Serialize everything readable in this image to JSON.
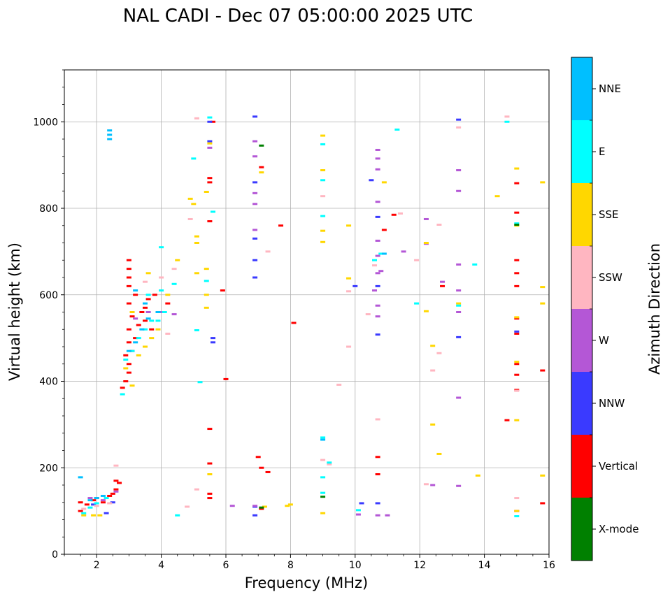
{
  "chart_data": {
    "type": "scatter",
    "title": "NAL CADI - Dec 07 05:00:00 2025 UTC",
    "xlabel": "Frequency (MHz)",
    "ylabel": "Virtual height (km)",
    "xlim": [
      1,
      16
    ],
    "ylim": [
      0,
      1120
    ],
    "xticks": [
      2,
      4,
      6,
      8,
      10,
      12,
      14,
      16
    ],
    "yticks": [
      0,
      200,
      400,
      600,
      800,
      1000
    ],
    "grid": true,
    "colorbar": {
      "title": "Azimuth Direction",
      "categories": [
        {
          "name": "X-mode",
          "color": "#008000"
        },
        {
          "name": "Vertical",
          "color": "#ff0000"
        },
        {
          "name": "NNW",
          "color": "#3a3aff"
        },
        {
          "name": "W",
          "color": "#b457d6"
        },
        {
          "name": "SSW",
          "color": "#ffb6c1"
        },
        {
          "name": "SSE",
          "color": "#ffd700"
        },
        {
          "name": "E",
          "color": "#00ffff"
        },
        {
          "name": "NNE",
          "color": "#00bfff"
        }
      ]
    },
    "series": [
      {
        "name": "Vertical",
        "points": [
          [
            1.5,
            100
          ],
          [
            1.5,
            120
          ],
          [
            1.7,
            115
          ],
          [
            1.9,
            125
          ],
          [
            2.0,
            130
          ],
          [
            2.2,
            120
          ],
          [
            2.4,
            135
          ],
          [
            2.5,
            140
          ],
          [
            2.6,
            150
          ],
          [
            2.7,
            165
          ],
          [
            2.6,
            170
          ],
          [
            2.8,
            385
          ],
          [
            2.9,
            400
          ],
          [
            3.0,
            420
          ],
          [
            3.0,
            440
          ],
          [
            2.9,
            460
          ],
          [
            3.1,
            470
          ],
          [
            3.0,
            490
          ],
          [
            3.2,
            500
          ],
          [
            3.0,
            520
          ],
          [
            3.3,
            530
          ],
          [
            3.1,
            550
          ],
          [
            3.4,
            560
          ],
          [
            3.0,
            580
          ],
          [
            3.5,
            570
          ],
          [
            3.2,
            600
          ],
          [
            3.0,
            620
          ],
          [
            3.6,
            590
          ],
          [
            3.8,
            600
          ],
          [
            3.0,
            640
          ],
          [
            3.0,
            660
          ],
          [
            3.0,
            680
          ],
          [
            3.5,
            540
          ],
          [
            3.7,
            520
          ],
          [
            4.2,
            580
          ],
          [
            5.5,
            770
          ],
          [
            5.6,
            1000
          ],
          [
            5.5,
            860
          ],
          [
            5.5,
            870
          ],
          [
            5.5,
            290
          ],
          [
            5.5,
            210
          ],
          [
            5.5,
            140
          ],
          [
            5.5,
            130
          ],
          [
            5.9,
            610
          ],
          [
            6.0,
            405
          ],
          [
            7.0,
            225
          ],
          [
            7.1,
            895
          ],
          [
            7.1,
            200
          ],
          [
            7.3,
            190
          ],
          [
            7.1,
            105
          ],
          [
            7.7,
            760
          ],
          [
            8.1,
            535
          ],
          [
            10.7,
            185
          ],
          [
            10.7,
            225
          ],
          [
            10.9,
            750
          ],
          [
            11.2,
            785
          ],
          [
            12.7,
            620
          ],
          [
            14.7,
            310
          ],
          [
            15.0,
            100
          ],
          [
            15.0,
            380
          ],
          [
            15.0,
            415
          ],
          [
            15.0,
            440
          ],
          [
            15.0,
            510
          ],
          [
            15.0,
            545
          ],
          [
            15.0,
            620
          ],
          [
            15.0,
            650
          ],
          [
            15.0,
            680
          ],
          [
            15.0,
            790
          ],
          [
            15.0,
            858
          ],
          [
            15.8,
            425
          ],
          [
            15.8,
            118
          ]
        ]
      },
      {
        "name": "NNW",
        "points": [
          [
            1.9,
            115
          ],
          [
            2.3,
            95
          ],
          [
            2.5,
            120
          ],
          [
            5.6,
            500
          ],
          [
            5.6,
            490
          ],
          [
            5.5,
            1000
          ],
          [
            5.5,
            955
          ],
          [
            6.9,
            1012
          ],
          [
            6.9,
            860
          ],
          [
            6.9,
            730
          ],
          [
            6.9,
            680
          ],
          [
            6.9,
            640
          ],
          [
            6.9,
            110
          ],
          [
            6.9,
            90
          ],
          [
            10.0,
            620
          ],
          [
            10.2,
            118
          ],
          [
            10.5,
            865
          ],
          [
            10.7,
            780
          ],
          [
            10.7,
            620
          ],
          [
            10.7,
            508
          ],
          [
            10.7,
            118
          ],
          [
            13.2,
            1005
          ],
          [
            13.2,
            502
          ],
          [
            15.0,
            515
          ]
        ]
      },
      {
        "name": "W",
        "points": [
          [
            1.8,
            130
          ],
          [
            2.2,
            125
          ],
          [
            2.6,
            145
          ],
          [
            3.2,
            545
          ],
          [
            3.6,
            560
          ],
          [
            4.0,
            560
          ],
          [
            4.4,
            555
          ],
          [
            5.5,
            940
          ],
          [
            6.2,
            112
          ],
          [
            6.9,
            955
          ],
          [
            6.9,
            920
          ],
          [
            6.9,
            835
          ],
          [
            6.9,
            810
          ],
          [
            6.9,
            750
          ],
          [
            6.9,
            112
          ],
          [
            10.1,
            92
          ],
          [
            10.6,
            610
          ],
          [
            10.7,
            935
          ],
          [
            10.7,
            915
          ],
          [
            10.7,
            890
          ],
          [
            10.7,
            815
          ],
          [
            10.7,
            725
          ],
          [
            10.7,
            690
          ],
          [
            10.7,
            650
          ],
          [
            10.7,
            575
          ],
          [
            10.7,
            550
          ],
          [
            10.8,
            655
          ],
          [
            10.7,
            90
          ],
          [
            11.0,
            90
          ],
          [
            11.5,
            700
          ],
          [
            12.2,
            775
          ],
          [
            12.4,
            160
          ],
          [
            12.7,
            630
          ],
          [
            13.2,
            888
          ],
          [
            13.2,
            840
          ],
          [
            13.2,
            670
          ],
          [
            13.2,
            610
          ],
          [
            13.2,
            560
          ],
          [
            13.2,
            362
          ],
          [
            13.2,
            158
          ],
          [
            12.2,
            718
          ]
        ]
      },
      {
        "name": "SSW",
        "points": [
          [
            1.6,
            105
          ],
          [
            2.0,
            112
          ],
          [
            2.4,
            118
          ],
          [
            2.6,
            205
          ],
          [
            3.5,
            630
          ],
          [
            4.0,
            640
          ],
          [
            4.2,
            510
          ],
          [
            4.4,
            660
          ],
          [
            4.8,
            110
          ],
          [
            4.9,
            775
          ],
          [
            5.1,
            150
          ],
          [
            5.1,
            1008
          ],
          [
            7.3,
            700
          ],
          [
            9.0,
            828
          ],
          [
            9.0,
            218
          ],
          [
            9.2,
            208
          ],
          [
            9.8,
            608
          ],
          [
            9.8,
            480
          ],
          [
            9.5,
            392
          ],
          [
            10.4,
            555
          ],
          [
            10.6,
            668
          ],
          [
            10.7,
            312
          ],
          [
            11.4,
            788
          ],
          [
            11.9,
            680
          ],
          [
            12.2,
            162
          ],
          [
            12.4,
            425
          ],
          [
            12.6,
            762
          ],
          [
            12.6,
            465
          ],
          [
            13.2,
            987
          ],
          [
            14.7,
            1012
          ],
          [
            15.0,
            378
          ],
          [
            15.0,
            130
          ]
        ]
      },
      {
        "name": "SSE",
        "points": [
          [
            1.6,
            90
          ],
          [
            1.9,
            90
          ],
          [
            2.1,
            90
          ],
          [
            2.9,
            430
          ],
          [
            3.1,
            390
          ],
          [
            3.3,
            460
          ],
          [
            3.5,
            480
          ],
          [
            3.7,
            500
          ],
          [
            3.9,
            520
          ],
          [
            3.1,
            560
          ],
          [
            3.6,
            650
          ],
          [
            4.2,
            600
          ],
          [
            4.5,
            680
          ],
          [
            4.9,
            822
          ],
          [
            5.0,
            810
          ],
          [
            5.1,
            735
          ],
          [
            5.1,
            720
          ],
          [
            5.1,
            650
          ],
          [
            5.4,
            838
          ],
          [
            5.4,
            660
          ],
          [
            5.4,
            600
          ],
          [
            5.4,
            570
          ],
          [
            5.5,
            185
          ],
          [
            5.5,
            950
          ],
          [
            7.1,
            883
          ],
          [
            7.2,
            110
          ],
          [
            7.9,
            112
          ],
          [
            8.0,
            115
          ],
          [
            9.0,
            968
          ],
          [
            9.0,
            888
          ],
          [
            9.0,
            722
          ],
          [
            9.0,
            748
          ],
          [
            9.0,
            95
          ],
          [
            9.8,
            760
          ],
          [
            9.8,
            638
          ],
          [
            10.9,
            860
          ],
          [
            12.2,
            720
          ],
          [
            12.2,
            562
          ],
          [
            12.4,
            482
          ],
          [
            12.4,
            300
          ],
          [
            12.6,
            232
          ],
          [
            13.2,
            580
          ],
          [
            13.8,
            182
          ],
          [
            14.4,
            828
          ],
          [
            15.0,
            892
          ],
          [
            15.0,
            760
          ],
          [
            15.0,
            548
          ],
          [
            15.0,
            445
          ],
          [
            15.0,
            310
          ],
          [
            15.0,
            100
          ],
          [
            15.8,
            860
          ],
          [
            15.8,
            618
          ],
          [
            15.8,
            580
          ],
          [
            15.8,
            182
          ]
        ]
      },
      {
        "name": "E",
        "points": [
          [
            1.6,
            95
          ],
          [
            1.8,
            108
          ],
          [
            2.0,
            118
          ],
          [
            2.3,
            130
          ],
          [
            2.8,
            370
          ],
          [
            2.9,
            450
          ],
          [
            3.1,
            470
          ],
          [
            3.3,
            500
          ],
          [
            3.5,
            520
          ],
          [
            3.7,
            540
          ],
          [
            3.9,
            540
          ],
          [
            4.1,
            560
          ],
          [
            3.6,
            600
          ],
          [
            4.0,
            610
          ],
          [
            4.0,
            710
          ],
          [
            4.4,
            625
          ],
          [
            4.5,
            90
          ],
          [
            5.0,
            915
          ],
          [
            5.1,
            518
          ],
          [
            5.2,
            398
          ],
          [
            5.4,
            632
          ],
          [
            5.5,
            1010
          ],
          [
            5.6,
            792
          ],
          [
            9.0,
            948
          ],
          [
            9.0,
            865
          ],
          [
            9.0,
            782
          ],
          [
            9.0,
            270
          ],
          [
            9.0,
            178
          ],
          [
            9.0,
            142
          ],
          [
            9.2,
            212
          ],
          [
            10.1,
            102
          ],
          [
            10.6,
            680
          ],
          [
            10.8,
            695
          ],
          [
            11.3,
            982
          ],
          [
            11.9,
            580
          ],
          [
            13.2,
            575
          ],
          [
            13.7,
            670
          ],
          [
            14.7,
            1000
          ],
          [
            15.0,
            88
          ],
          [
            15.0,
            765
          ]
        ]
      },
      {
        "name": "NNE",
        "points": [
          [
            1.5,
            178
          ],
          [
            1.8,
            125
          ],
          [
            2.0,
            130
          ],
          [
            2.2,
            135
          ],
          [
            2.4,
            980
          ],
          [
            2.4,
            970
          ],
          [
            2.4,
            960
          ],
          [
            3.0,
            470
          ],
          [
            3.2,
            490
          ],
          [
            3.4,
            520
          ],
          [
            3.6,
            545
          ],
          [
            3.2,
            610
          ],
          [
            3.5,
            580
          ],
          [
            3.9,
            560
          ],
          [
            10.9,
            695
          ],
          [
            9.0,
            265
          ]
        ]
      },
      {
        "name": "X-mode",
        "points": [
          [
            9.0,
            133
          ],
          [
            7.1,
            945
          ],
          [
            15.0,
            762
          ],
          [
            7.1,
            108
          ]
        ]
      }
    ]
  }
}
